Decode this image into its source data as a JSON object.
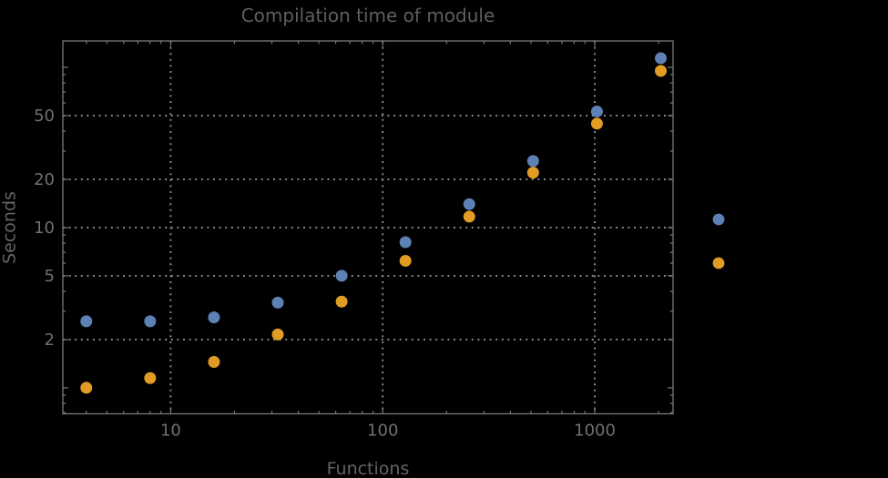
{
  "window": {
    "background": "#000000"
  },
  "chart_data": {
    "type": "scatter",
    "title": "Compilation time of module",
    "xlabel": "Functions",
    "ylabel": "Seconds",
    "x_scale": "log",
    "y_scale": "log",
    "xlim": [
      3.1,
      2340
    ],
    "ylim": [
      0.688,
      146
    ],
    "grid": "dotted",
    "legend_position": "right-of-frame",
    "x": [
      4,
      8,
      16,
      32,
      64,
      128,
      256,
      512,
      1024,
      2048
    ],
    "series": [
      {
        "name": "blue",
        "color": "#5E81B5",
        "values": [
          2.6,
          2.6,
          2.75,
          3.4,
          5.0,
          8.1,
          14,
          26,
          53,
          114
        ]
      },
      {
        "name": "orange",
        "color": "#E19C24",
        "values": [
          1.0,
          1.15,
          1.45,
          2.15,
          3.45,
          6.2,
          11.7,
          22,
          44.5,
          95
        ]
      }
    ],
    "x_ticks": {
      "labeled": [
        {
          "value": 10,
          "label": "10"
        },
        {
          "value": 100,
          "label": "100"
        },
        {
          "value": 1000,
          "label": "1000"
        }
      ],
      "minor": [
        4,
        5,
        6,
        7,
        8,
        9,
        20,
        30,
        40,
        50,
        60,
        70,
        80,
        90,
        200,
        300,
        400,
        500,
        600,
        700,
        800,
        900,
        2000
      ]
    },
    "y_ticks": {
      "labeled": [
        {
          "value": 2,
          "label": "2"
        },
        {
          "value": 5,
          "label": "5"
        },
        {
          "value": 10,
          "label": "10"
        },
        {
          "value": 20,
          "label": "20"
        },
        {
          "value": 50,
          "label": "50"
        }
      ],
      "major_unlabeled": [
        1,
        100
      ],
      "minor": [
        0.7,
        0.8,
        0.9,
        3,
        4,
        6,
        7,
        8,
        9,
        30,
        40,
        60,
        70,
        80,
        90
      ]
    },
    "gridlines": {
      "x": [
        10,
        100,
        1000
      ],
      "y": [
        2,
        5,
        10,
        20,
        50
      ]
    },
    "legend_markers": [
      {
        "name": "blue",
        "color": "#5E81B5"
      },
      {
        "name": "orange",
        "color": "#E19C24"
      }
    ]
  },
  "colors": {
    "background": "#000000",
    "frame": "#7a7a7a",
    "grid": "#8d8d8d",
    "tick": "#7a7a7a",
    "tick_label": "#707070",
    "axis_label": "#636363",
    "title": "#5e5e5e",
    "series_blue": "#5E81B5",
    "series_orange": "#E19C24"
  }
}
